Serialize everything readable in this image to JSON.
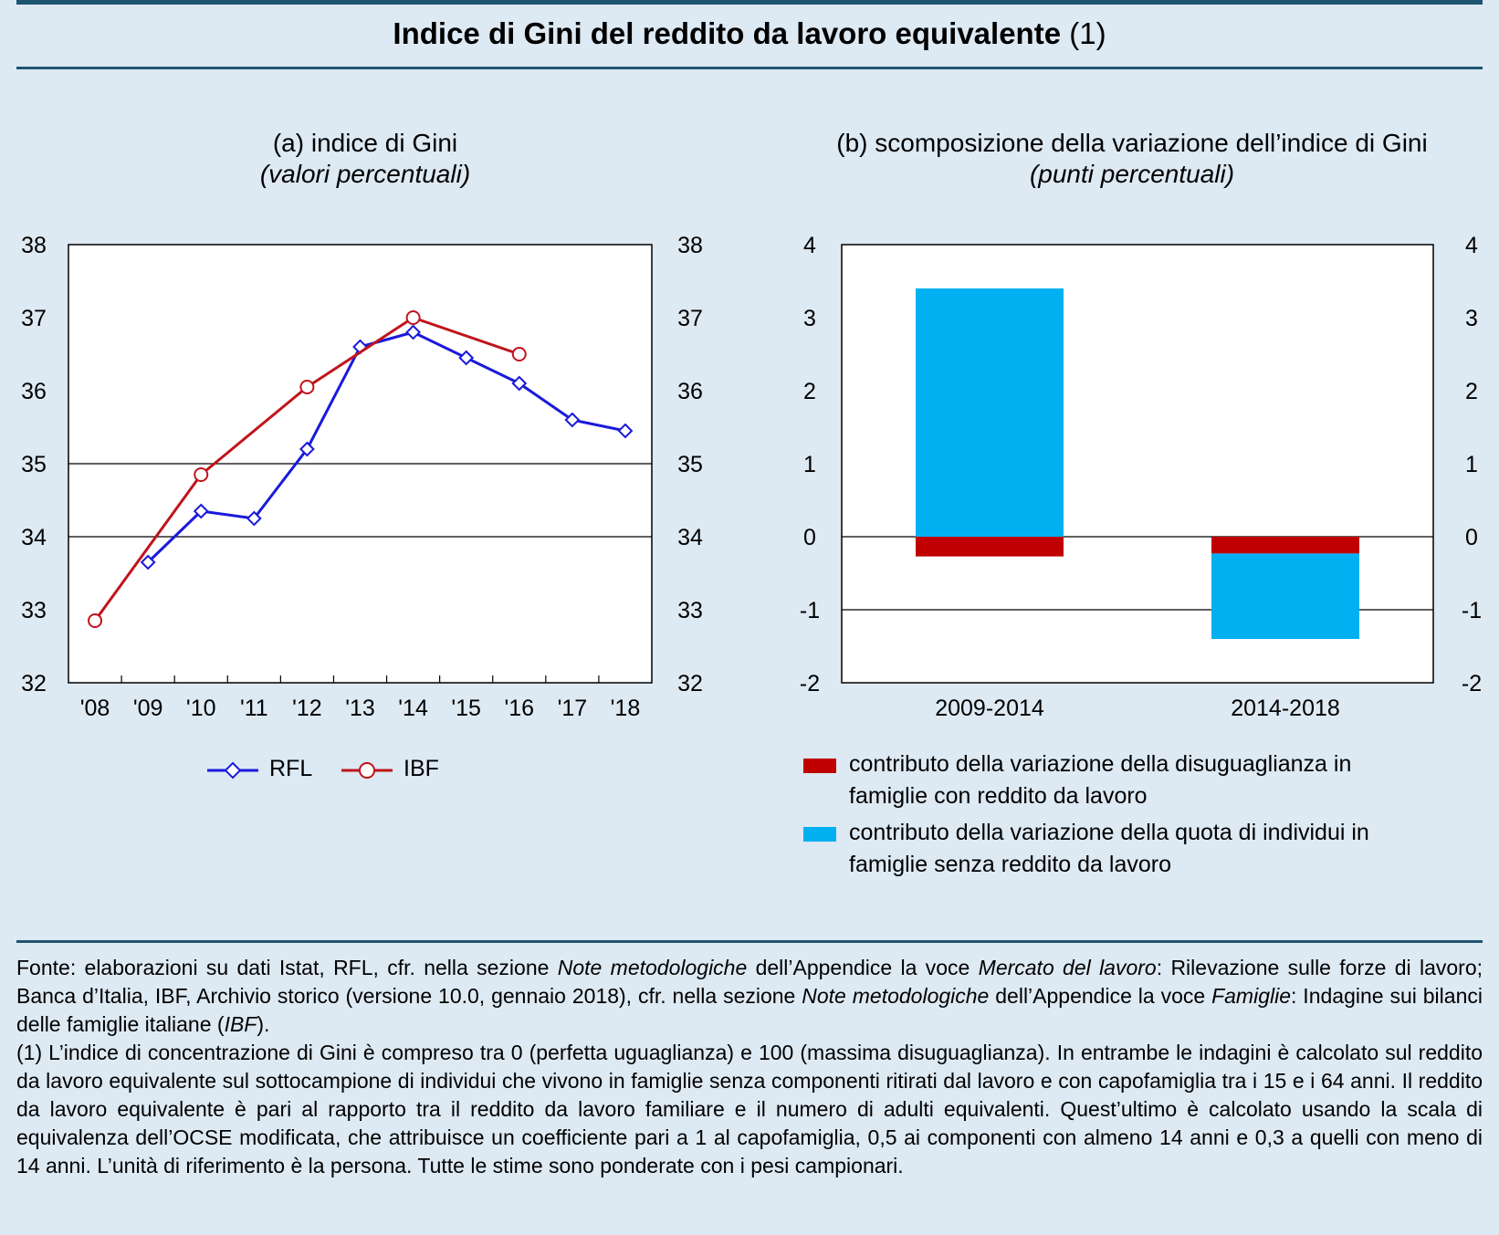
{
  "title": "Indice di Gini del reddito da lavoro equivalente",
  "title_note": "(1)",
  "colors": {
    "rfl": "#1a1adc",
    "ibf": "#c0141c",
    "red_bar": "#c00000",
    "cyan_bar": "#00b0f0",
    "rule": "#1e5570"
  },
  "panel_a": {
    "title": "(a) indice di Gini",
    "unit": "(valori percentuali)",
    "legend": [
      "RFL",
      "IBF"
    ]
  },
  "panel_b": {
    "title": "(b) scomposizione della variazione dell’indice di Gini",
    "unit": "(punti percentuali)",
    "legend": [
      "contributo della variazione della disuguaglianza in famiglie con reddito da lavoro",
      "contributo della variazione della quota di individui in famiglie senza reddito da lavoro"
    ]
  },
  "chart_data": [
    {
      "type": "line",
      "title": "(a) indice di Gini",
      "ylabel": "(valori percentuali)",
      "categories": [
        "'08",
        "'09",
        "'10",
        "'11",
        "'12",
        "'13",
        "'14",
        "'15",
        "'16",
        "'17",
        "'18"
      ],
      "ylim": [
        32,
        38
      ],
      "yticks": [
        "32",
        "33",
        "34",
        "35",
        "36",
        "37",
        "38"
      ],
      "gridlines": [
        34,
        35
      ],
      "series": [
        {
          "name": "RFL",
          "marker": "diamond",
          "values": [
            null,
            33.65,
            34.35,
            34.25,
            35.2,
            36.6,
            36.8,
            36.45,
            36.1,
            35.6,
            35.45
          ]
        },
        {
          "name": "IBF",
          "marker": "circle",
          "values": [
            32.85,
            null,
            34.85,
            null,
            36.05,
            null,
            37.0,
            null,
            36.5,
            null,
            null
          ]
        }
      ]
    },
    {
      "type": "bar",
      "stacked": true,
      "title": "(b) scomposizione della variazione dell’indice di Gini",
      "ylabel": "(punti percentuali)",
      "categories": [
        "2009-2014",
        "2014-2018"
      ],
      "ylim": [
        -2,
        4
      ],
      "yticks": [
        "-2",
        "-1",
        "0",
        "1",
        "2",
        "3",
        "4"
      ],
      "gridlines": [
        0,
        -1
      ],
      "series": [
        {
          "name": "contributo della variazione della disuguaglianza in famiglie con reddito da lavoro",
          "values": [
            -0.27,
            -0.23
          ]
        },
        {
          "name": "contributo della variazione della quota di individui in famiglie senza reddito da lavoro",
          "values": [
            3.4,
            -1.17
          ]
        }
      ]
    }
  ],
  "notes": [
    [
      {
        "t": "Fonte: elaborazioni su dati Istat, RFL, cfr. nella sezione "
      },
      {
        "t": "Note metodologiche",
        "i": true
      },
      {
        "t": " dell’Appendice la voce "
      },
      {
        "t": "Mercato del lavoro",
        "i": true
      },
      {
        "t": ": Rilevazione sulle forze di lavoro; Banca d’Italia, IBF, Archivio storico (versione 10.0, gennaio 2018), cfr. nella sezione "
      },
      {
        "t": "Note metodologiche",
        "i": true
      },
      {
        "t": " dell’Appendice la voce "
      },
      {
        "t": "Famiglie",
        "i": true
      },
      {
        "t": ": Indagine sui bilanci delle famiglie italiane ("
      },
      {
        "t": "IBF",
        "i": true
      },
      {
        "t": ")."
      }
    ],
    [
      {
        "t": "(1) L’indice di concentrazione di Gini è compreso tra 0 (perfetta uguaglianza) e 100 (massima disuguaglianza). In entrambe le indagini è calcolato sul reddito da lavoro equivalente sul sottocampione di individui che vivono in famiglie senza componenti ritirati dal lavoro e con capofamiglia tra i 15 e i 64 anni. Il reddito da lavoro equivalente è pari al rapporto tra il reddito da lavoro familiare e il numero di adulti equivalenti. Quest’ultimo è calcolato usando la scala di equivalenza dell’OCSE modificata, che attribuisce un coefficiente pari a 1 al capofamiglia, 0,5 ai componenti con almeno 14 anni e 0,3 a quelli con meno di 14 anni. L’unità di riferimento è la persona. Tutte le stime sono ponderate con i pesi campionari."
      }
    ]
  ]
}
